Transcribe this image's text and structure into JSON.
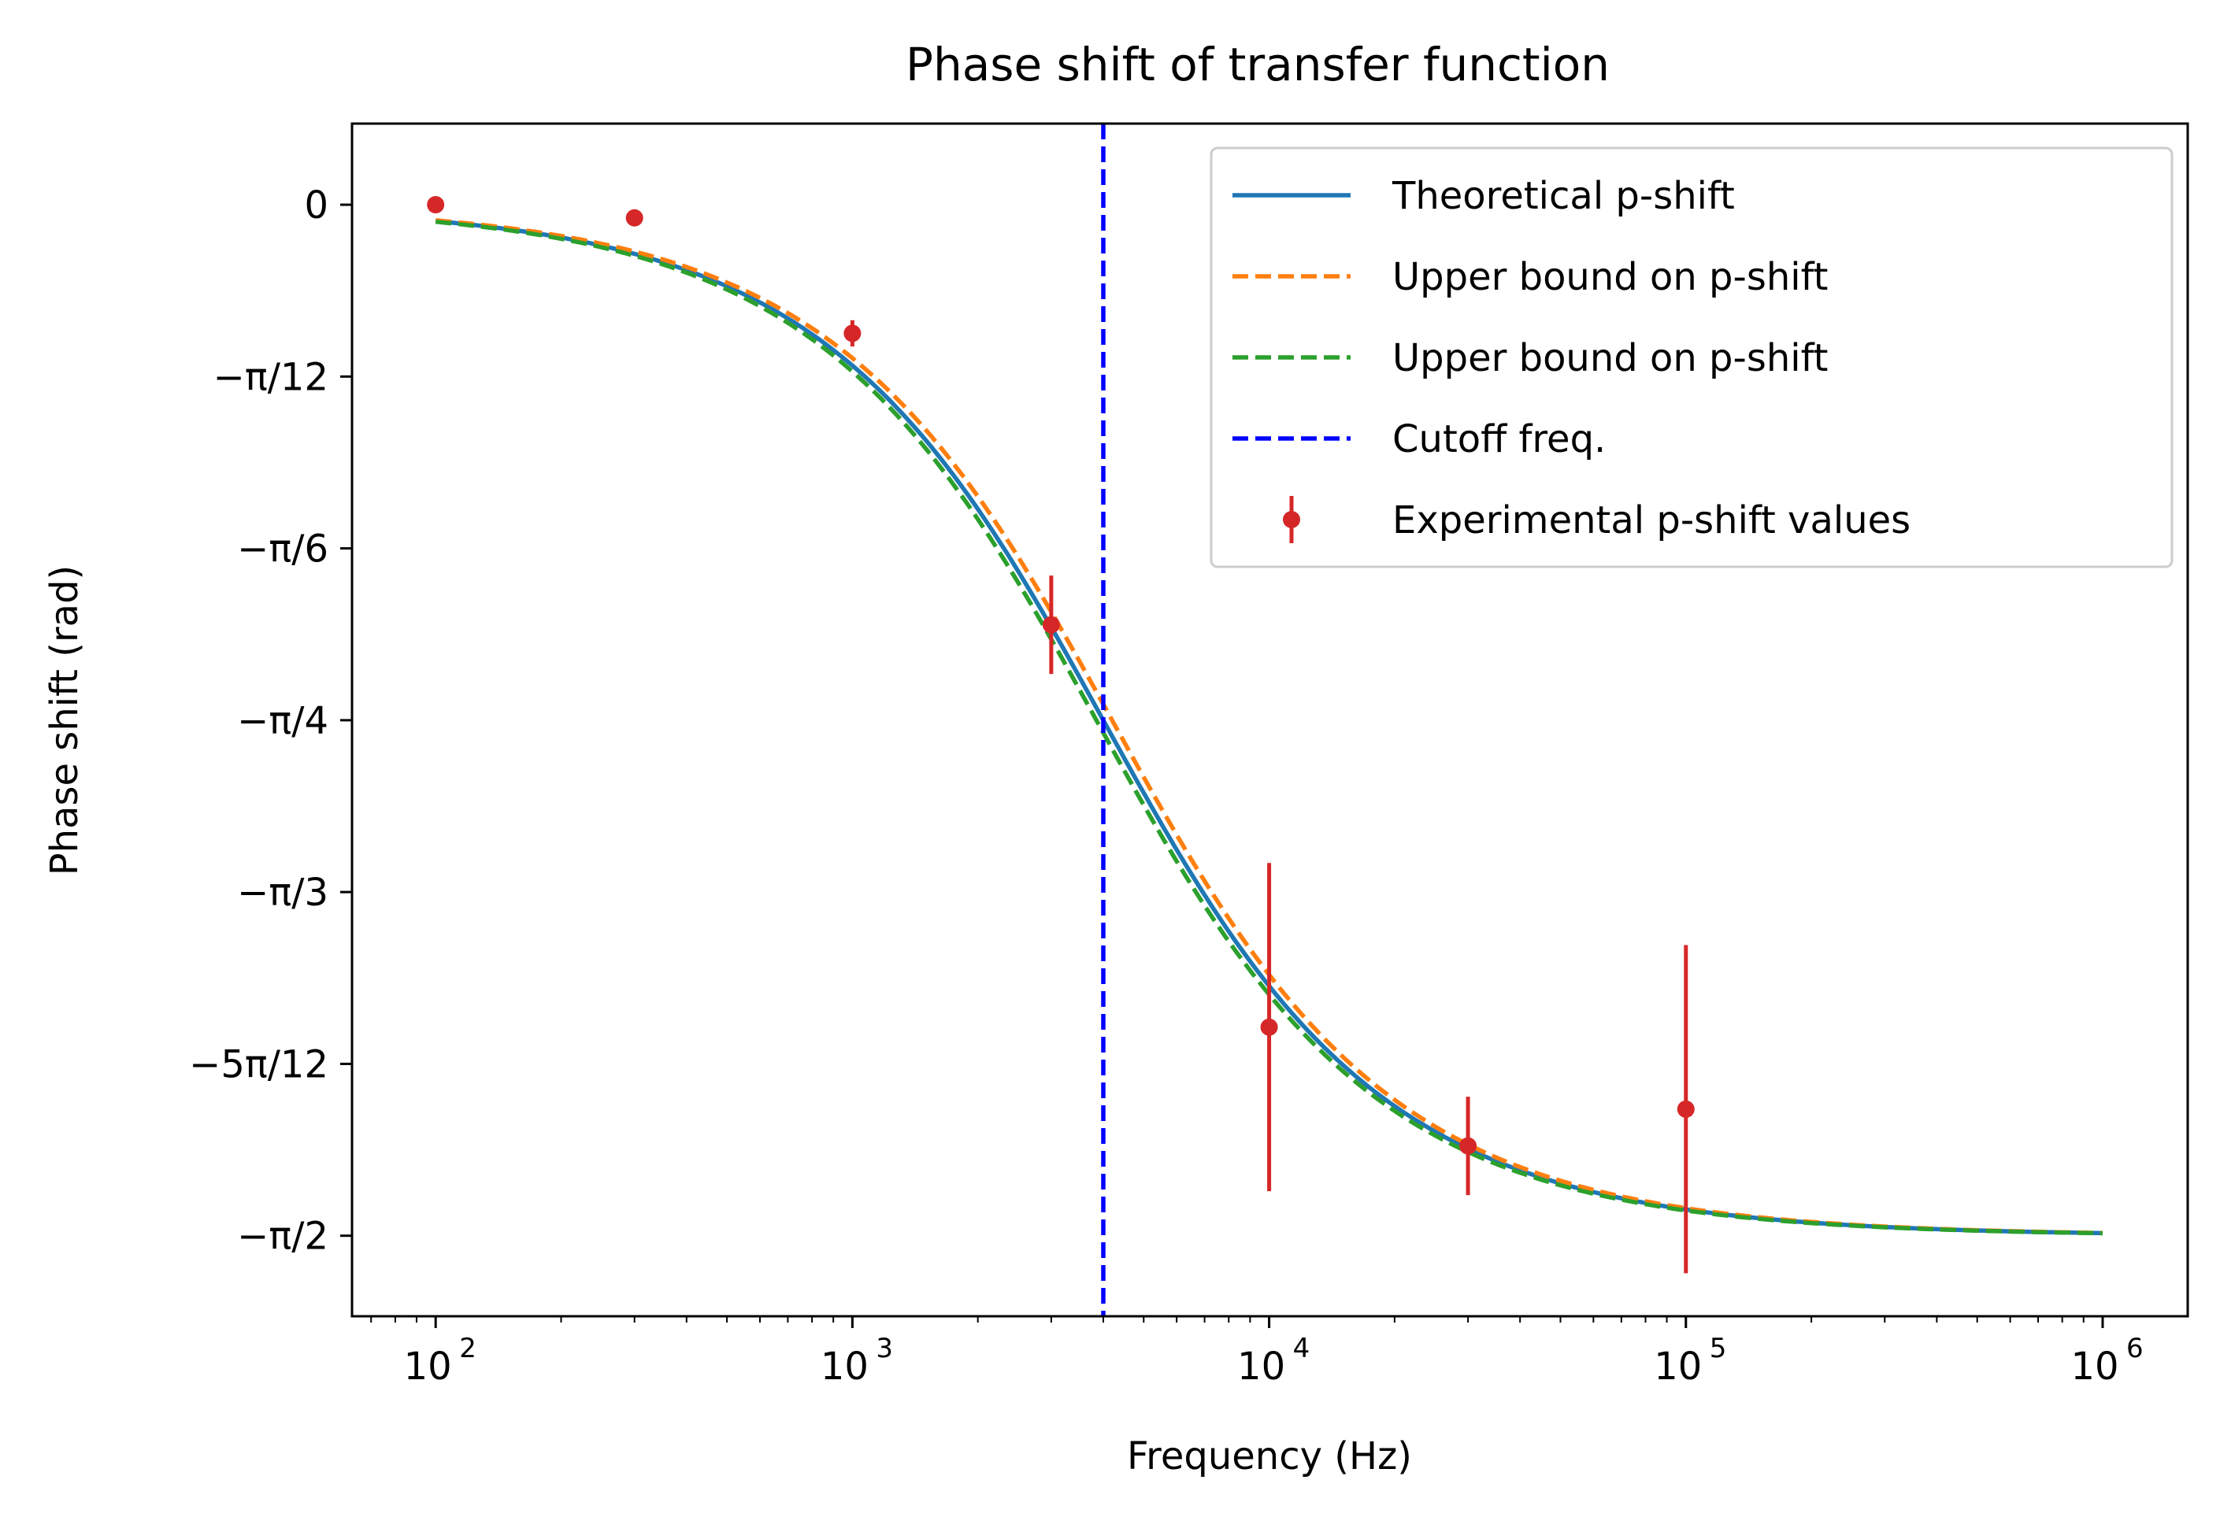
{
  "chart_data": {
    "type": "line",
    "title": "Phase shift of transfer function",
    "xlabel": "Frequency (Hz)",
    "ylabel": "Phase shift (rad)",
    "xscale": "log",
    "xlim": [
      63,
      1600000
    ],
    "ylim": [
      -1.6935,
      0.1236
    ],
    "x_ticks": [
      {
        "value": 100,
        "label": "10",
        "exp": "2"
      },
      {
        "value": 1000,
        "label": "10",
        "exp": "3"
      },
      {
        "value": 10000,
        "label": "10",
        "exp": "4"
      },
      {
        "value": 100000,
        "label": "10",
        "exp": "5"
      },
      {
        "value": 1000000,
        "label": "10",
        "exp": "6"
      }
    ],
    "y_ticks": [
      {
        "value": 0,
        "label": "0"
      },
      {
        "value": -0.2618,
        "label": "−π/12"
      },
      {
        "value": -0.5236,
        "label": "−π/6"
      },
      {
        "value": -0.7854,
        "label": "−π/4"
      },
      {
        "value": -1.0472,
        "label": "−π/3"
      },
      {
        "value": -1.309,
        "label": "−5π/12"
      },
      {
        "value": -1.5708,
        "label": "−π/2"
      }
    ],
    "grid": false,
    "legend_position": "top-right",
    "curves": [
      {
        "name": "Theoretical p-shift",
        "style": "solid",
        "color": "#1f77b4",
        "cutoff_hz": 4000
      },
      {
        "name": "Upper bound on p-shift",
        "style": "dashed",
        "color": "#ff7f0e",
        "cutoff_hz": 4200
      },
      {
        "name": "Upper bound on p-shift",
        "style": "dashed",
        "color": "#2ca02c",
        "cutoff_hz": 3850
      }
    ],
    "curve_x_range": [
      100,
      1000000
    ],
    "cutoff": {
      "name": "Cutoff freq.",
      "x": 4000,
      "color": "#0000ff",
      "style": "dashed"
    },
    "experimental": {
      "name": "Experimental p-shift values",
      "color": "#d62728",
      "points": [
        {
          "x": 100,
          "y": 0.0,
          "err": 0.0
        },
        {
          "x": 300,
          "y": -0.02,
          "err": 0.0
        },
        {
          "x": 1000,
          "y": -0.196,
          "err": 0.02
        },
        {
          "x": 3000,
          "y": -0.64,
          "err": 0.075
        },
        {
          "x": 10000,
          "y": -1.253,
          "err": 0.25
        },
        {
          "x": 30000,
          "y": -1.434,
          "err": 0.075
        },
        {
          "x": 100000,
          "y": -1.378,
          "err": 0.25
        }
      ]
    }
  }
}
